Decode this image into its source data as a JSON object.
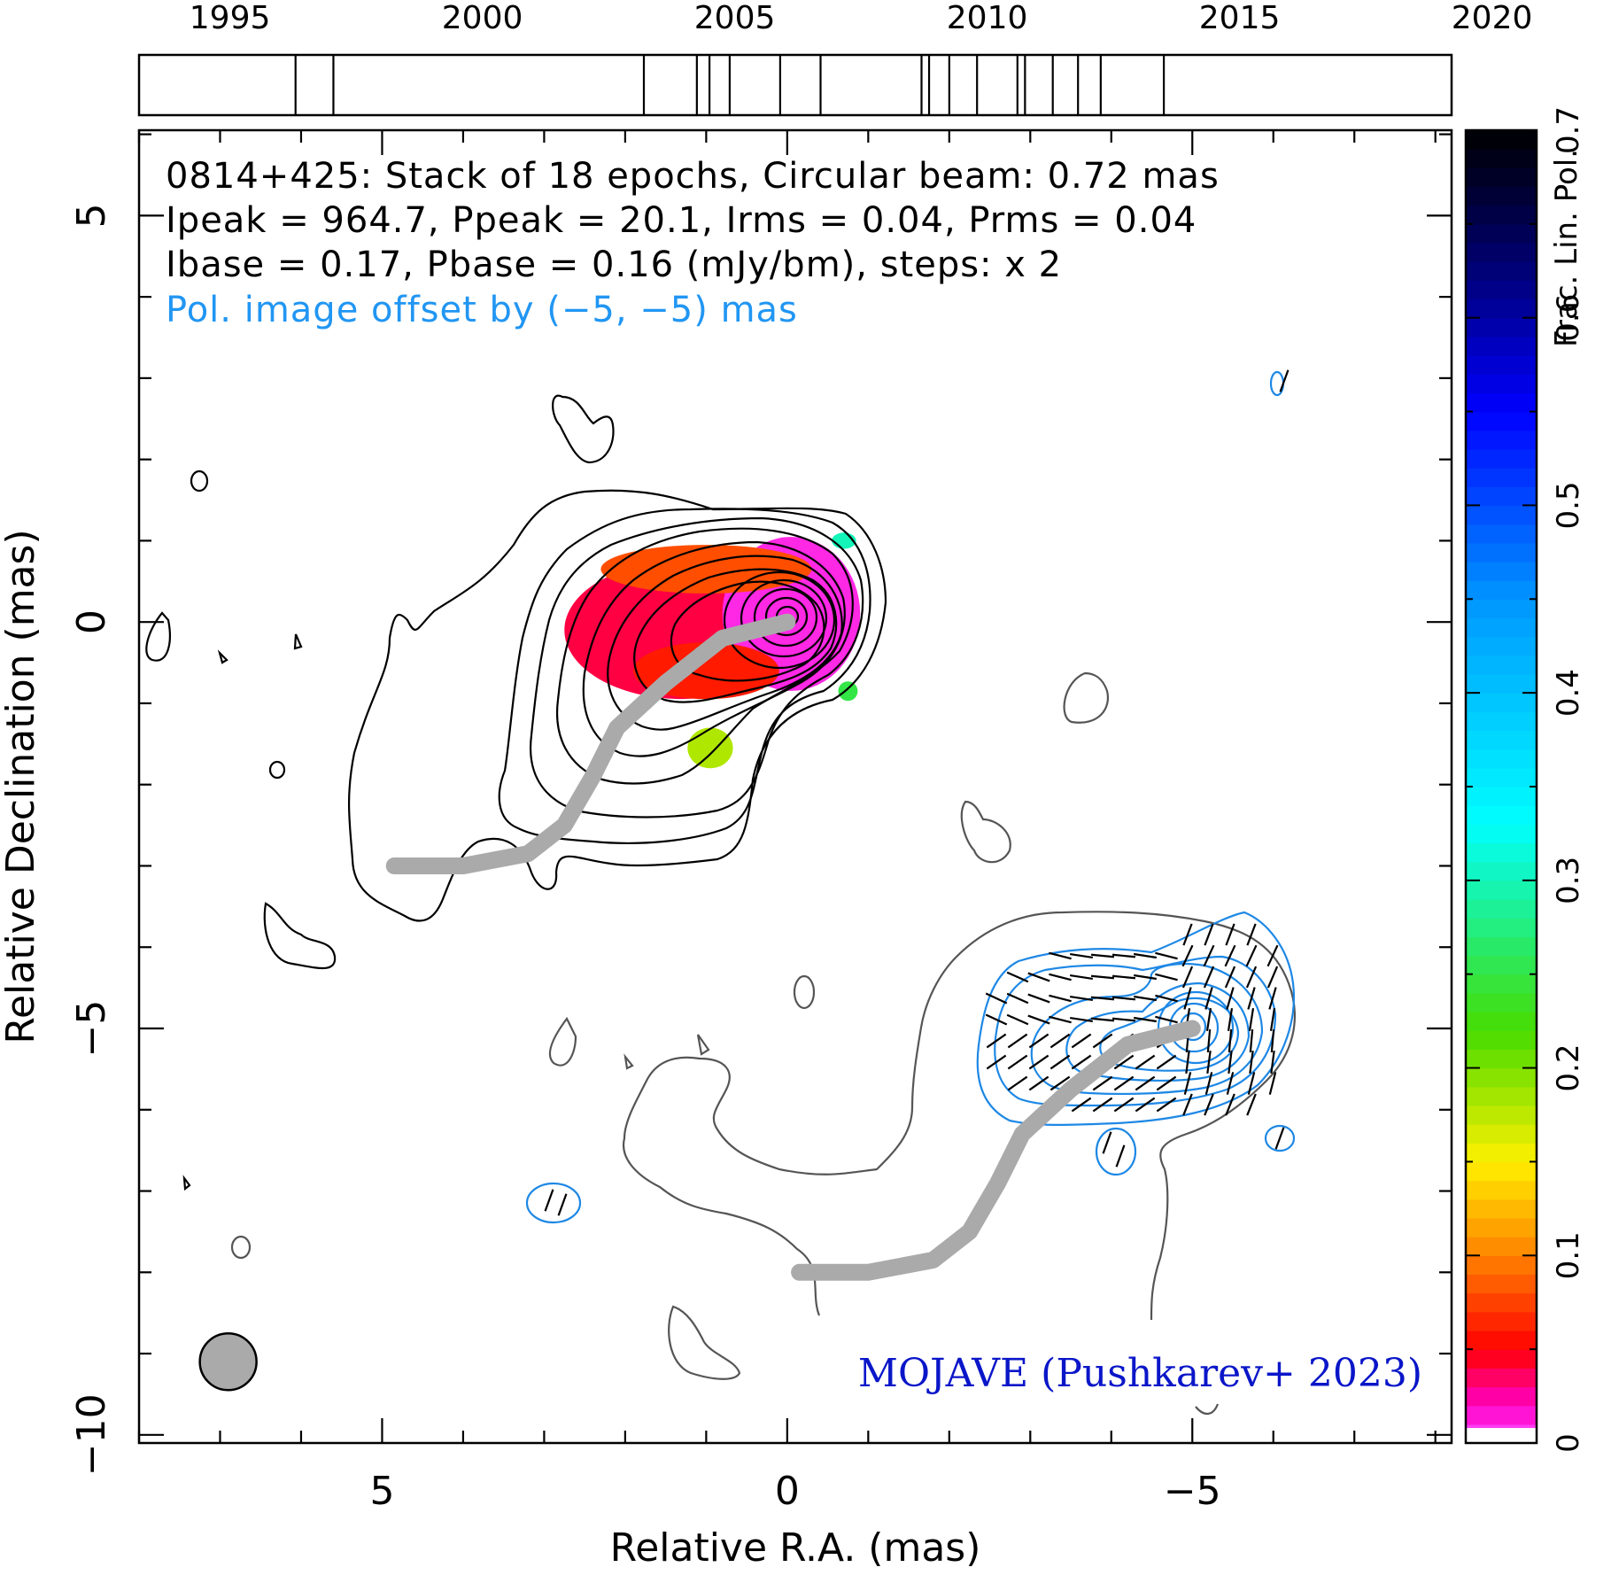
{
  "chart_data": {
    "type": "contour",
    "source": "0814+425",
    "info_lines": [
      "0814+425: Stack of 18 epochs, Circular beam: 0.72 mas",
      "Ipeak = 964.7, Ppeak = 20.1, Irms = 0.04, Prms = 0.04",
      "Ibase = 0.17, Pbase = 0.16 (mJy/bm), steps: x 2",
      "Pol. image offset by (−5, −5) mas"
    ],
    "credit": "MOJAVE (Pushkarev+ 2023)",
    "xlabel": "Relative R.A. (mas)",
    "ylabel": "Relative Declination (mas)",
    "colorbar_label": "Frac. Lin. Pol.",
    "xlim": [
      8,
      -8.2
    ],
    "ylim": [
      -10.1,
      6.05
    ],
    "x_ticks": [
      {
        "v": 5,
        "label": "5"
      },
      {
        "v": 0,
        "label": "0"
      },
      {
        "v": -5,
        "label": "−5"
      }
    ],
    "y_ticks": [
      {
        "v": 5,
        "label": "5"
      },
      {
        "v": 0,
        "label": "0"
      },
      {
        "v": -5,
        "label": "−5"
      },
      {
        "v": -10,
        "label": "−10"
      }
    ],
    "colorbar_range": [
      0,
      0.7
    ],
    "colorbar_ticks": [
      {
        "v": 0,
        "label": "0"
      },
      {
        "v": 0.1,
        "label": "0.1"
      },
      {
        "v": 0.2,
        "label": "0.2"
      },
      {
        "v": 0.3,
        "label": "0.3"
      },
      {
        "v": 0.4,
        "label": "0.4"
      },
      {
        "v": 0.5,
        "label": "0.5"
      },
      {
        "v": 0.6,
        "label": "0.6"
      },
      {
        "v": 0.7,
        "label": "0.7"
      }
    ],
    "timeline_range": [
      1993.2,
      2019.2
    ],
    "timeline_ticks": [
      {
        "v": 1995,
        "label": "1995"
      },
      {
        "v": 2000,
        "label": "2000"
      },
      {
        "v": 2005,
        "label": "2005"
      },
      {
        "v": 2010,
        "label": "2010"
      },
      {
        "v": 2015,
        "label": "2015"
      },
      {
        "v": 2020,
        "label": "2020"
      }
    ],
    "epochs": [
      1996.3,
      1997.05,
      2003.2,
      2004.25,
      2004.5,
      2004.9,
      2005.9,
      2006.7,
      2008.7,
      2008.85,
      2009.25,
      2009.8,
      2010.6,
      2010.75,
      2011.3,
      2011.8,
      2012.25,
      2013.5
    ],
    "ridge_line": [
      [
        4.85,
        -3.0
      ],
      [
        4.0,
        -3.0
      ],
      [
        3.2,
        -2.85
      ],
      [
        2.75,
        -2.5
      ],
      [
        2.4,
        -1.9
      ],
      [
        2.1,
        -1.3
      ],
      [
        1.5,
        -0.75
      ],
      [
        0.8,
        -0.2
      ],
      [
        0.0,
        0.0
      ]
    ],
    "pol_ridge_line": [
      [
        -0.15,
        -8.0
      ],
      [
        -1.0,
        -8.0
      ],
      [
        -1.8,
        -7.85
      ],
      [
        -2.25,
        -7.5
      ],
      [
        -2.6,
        -6.9
      ],
      [
        -2.9,
        -6.3
      ],
      [
        -3.5,
        -5.75
      ],
      [
        -4.2,
        -5.2
      ],
      [
        -5.0,
        -5.0
      ]
    ],
    "beam": {
      "x": 6.9,
      "y": -9.1,
      "diameter_mas": 0.72
    },
    "fracpol_patches": [
      {
        "x": 1.3,
        "y": -0.1,
        "rx": 1.45,
        "ry": 0.85,
        "value": 0.04
      },
      {
        "x": -0.05,
        "y": 0.1,
        "rx": 0.85,
        "ry": 0.95,
        "value": 0.01
      },
      {
        "x": 1.0,
        "y": -0.6,
        "rx": 0.9,
        "ry": 0.35,
        "value": 0.06
      },
      {
        "x": 1.0,
        "y": 0.65,
        "rx": 1.3,
        "ry": 0.3,
        "value": 0.08
      },
      {
        "x": 0.95,
        "y": -1.55,
        "rx": 0.28,
        "ry": 0.25,
        "value": 0.18
      },
      {
        "x": -0.7,
        "y": 1.0,
        "rx": 0.15,
        "ry": 0.1,
        "value": 0.3
      },
      {
        "x": -0.75,
        "y": -0.85,
        "rx": 0.12,
        "ry": 0.12,
        "value": 0.25
      }
    ],
    "series": [
      {
        "name": "Total intensity",
        "values": [
          0.17,
          0.34,
          0.68,
          1.36,
          2.72,
          5.44,
          10.9,
          21.8,
          43.5,
          87.0,
          174.1,
          348.2,
          696.4
        ]
      },
      {
        "name": "Linear polarization",
        "values": [
          0.16,
          0.32,
          0.64,
          1.28,
          2.56,
          5.12,
          10.2
        ]
      }
    ],
    "colors": {
      "frame": "#000000",
      "stokes_i_contour": "#000000",
      "offset_i_contour": "#555555",
      "pol_contour": "#1e88e5",
      "ridge": "#aaaaaa",
      "beam_fill": "#aaaaaa",
      "credit": "#0a16c8",
      "offset_note": "#2196f3"
    }
  }
}
